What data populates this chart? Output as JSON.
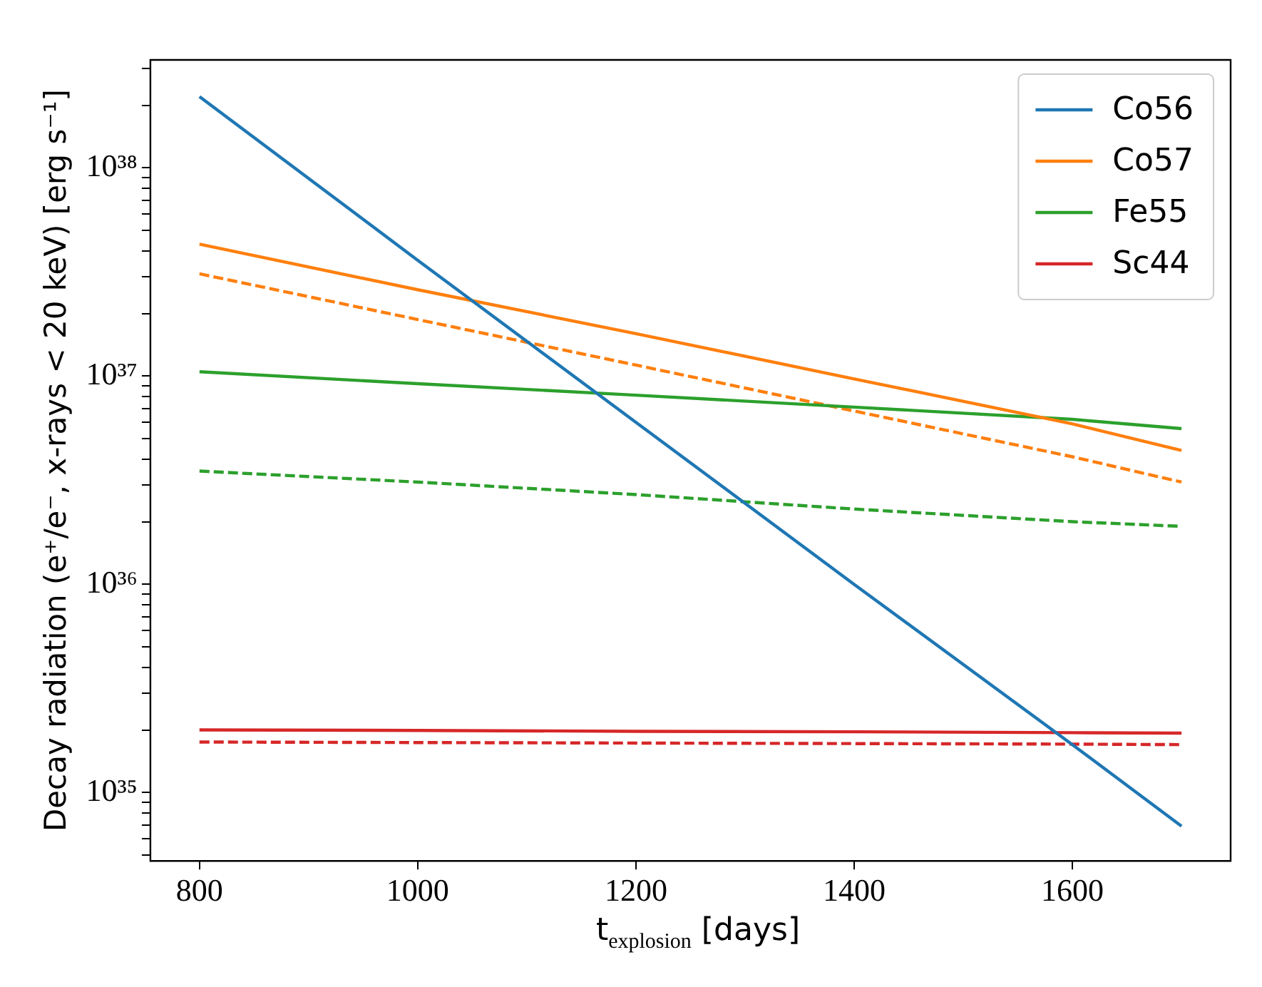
{
  "chart_data": {
    "type": "line",
    "xlabel": "t$_{explosion}$ [days]",
    "ylabel": "Decay radiation (e⁺/e⁻, x-rays < 20 keV) [erg s⁻¹]",
    "x": [
      800,
      1000,
      1200,
      1400,
      1600,
      1700
    ],
    "series": [
      {
        "name": "Co56",
        "color": "#1f77b4",
        "values": [
          2.2e+38,
          3.6e+37,
          6e+36,
          1e+36,
          1.7e+35,
          6.9e+34
        ]
      },
      {
        "name": "Co57",
        "color": "#ff7f0e",
        "values": [
          4.3e+37,
          2.6e+37,
          1.6e+37,
          9.7e+36,
          5.9e+36,
          4.4e+36
        ]
      },
      {
        "name": "Fe55",
        "color": "#2ca02c",
        "values": [
          1.05e+37,
          9.2e+36,
          8.1e+36,
          7.1e+36,
          6.2e+36,
          5.6e+36
        ]
      },
      {
        "name": "Sc44",
        "color": "#d62728",
        "values": [
          2e+35,
          1.99e+35,
          1.97e+35,
          1.96e+35,
          1.94e+35,
          1.93e+35
        ]
      },
      {
        "color": "#ff7f0e",
        "line_style": "dashed",
        "values": [
          3.1e+37,
          1.87e+37,
          1.13e+37,
          6.8e+36,
          4.1e+36,
          3.1e+36
        ]
      },
      {
        "color": "#2ca02c",
        "line_style": "dashed",
        "values": [
          3.5e+36,
          3.1e+36,
          2.7e+36,
          2.3e+36,
          2e+36,
          1.9e+36
        ]
      },
      {
        "color": "#d62728",
        "line_style": "dashed",
        "values": [
          1.75e+35,
          1.74e+35,
          1.73e+35,
          1.72e+35,
          1.71e+35,
          1.7e+35
        ]
      }
    ],
    "log": "y",
    "xlim": [
      755,
      1745
    ],
    "xticks": [
      800,
      1000,
      1200,
      1400,
      1600
    ],
    "ylim": [
      4.7e+34,
      3.3e+38
    ],
    "yticks": [
      {
        "value": 5e+34,
        "label": null
      },
      {
        "value": 6e+34,
        "label": null
      },
      {
        "value": 7e+34,
        "label": null
      },
      {
        "value": 8e+34,
        "label": null
      },
      {
        "value": 9e+34,
        "label": null
      },
      {
        "value": 1e+35,
        "label": "10³⁵"
      },
      {
        "value": 2e+35,
        "label": null
      },
      {
        "value": 3e+35,
        "label": null
      },
      {
        "value": 4e+35,
        "label": null
      },
      {
        "value": 5e+35,
        "label": null
      },
      {
        "value": 6e+35,
        "label": null
      },
      {
        "value": 7e+35,
        "label": null
      },
      {
        "value": 8e+35,
        "label": null
      },
      {
        "value": 9e+35,
        "label": null
      },
      {
        "value": 1e+36,
        "label": "10³⁶"
      },
      {
        "value": 2e+36,
        "label": null
      },
      {
        "value": 3e+36,
        "label": null
      },
      {
        "value": 4e+36,
        "label": null
      },
      {
        "value": 5e+36,
        "label": null
      },
      {
        "value": 6e+36,
        "label": null
      },
      {
        "value": 7e+36,
        "label": null
      },
      {
        "value": 8e+36,
        "label": null
      },
      {
        "value": 9e+36,
        "label": null
      },
      {
        "value": 1e+37,
        "label": "10³⁷"
      },
      {
        "value": 2e+37,
        "label": null
      },
      {
        "value": 3e+37,
        "label": null
      },
      {
        "value": 4e+37,
        "label": null
      },
      {
        "value": 5e+37,
        "label": null
      },
      {
        "value": 6e+37,
        "label": null
      },
      {
        "value": 7e+37,
        "label": null
      },
      {
        "value": 8e+37,
        "label": null
      },
      {
        "value": 9e+37,
        "label": null
      },
      {
        "value": 1e+38,
        "label": "10³⁸"
      },
      {
        "value": 2e+38,
        "label": null
      },
      {
        "value": 3e+38,
        "label": null
      }
    ],
    "grid": false,
    "legend": "top right",
    "marker": "none",
    "line_style": "solid"
  }
}
